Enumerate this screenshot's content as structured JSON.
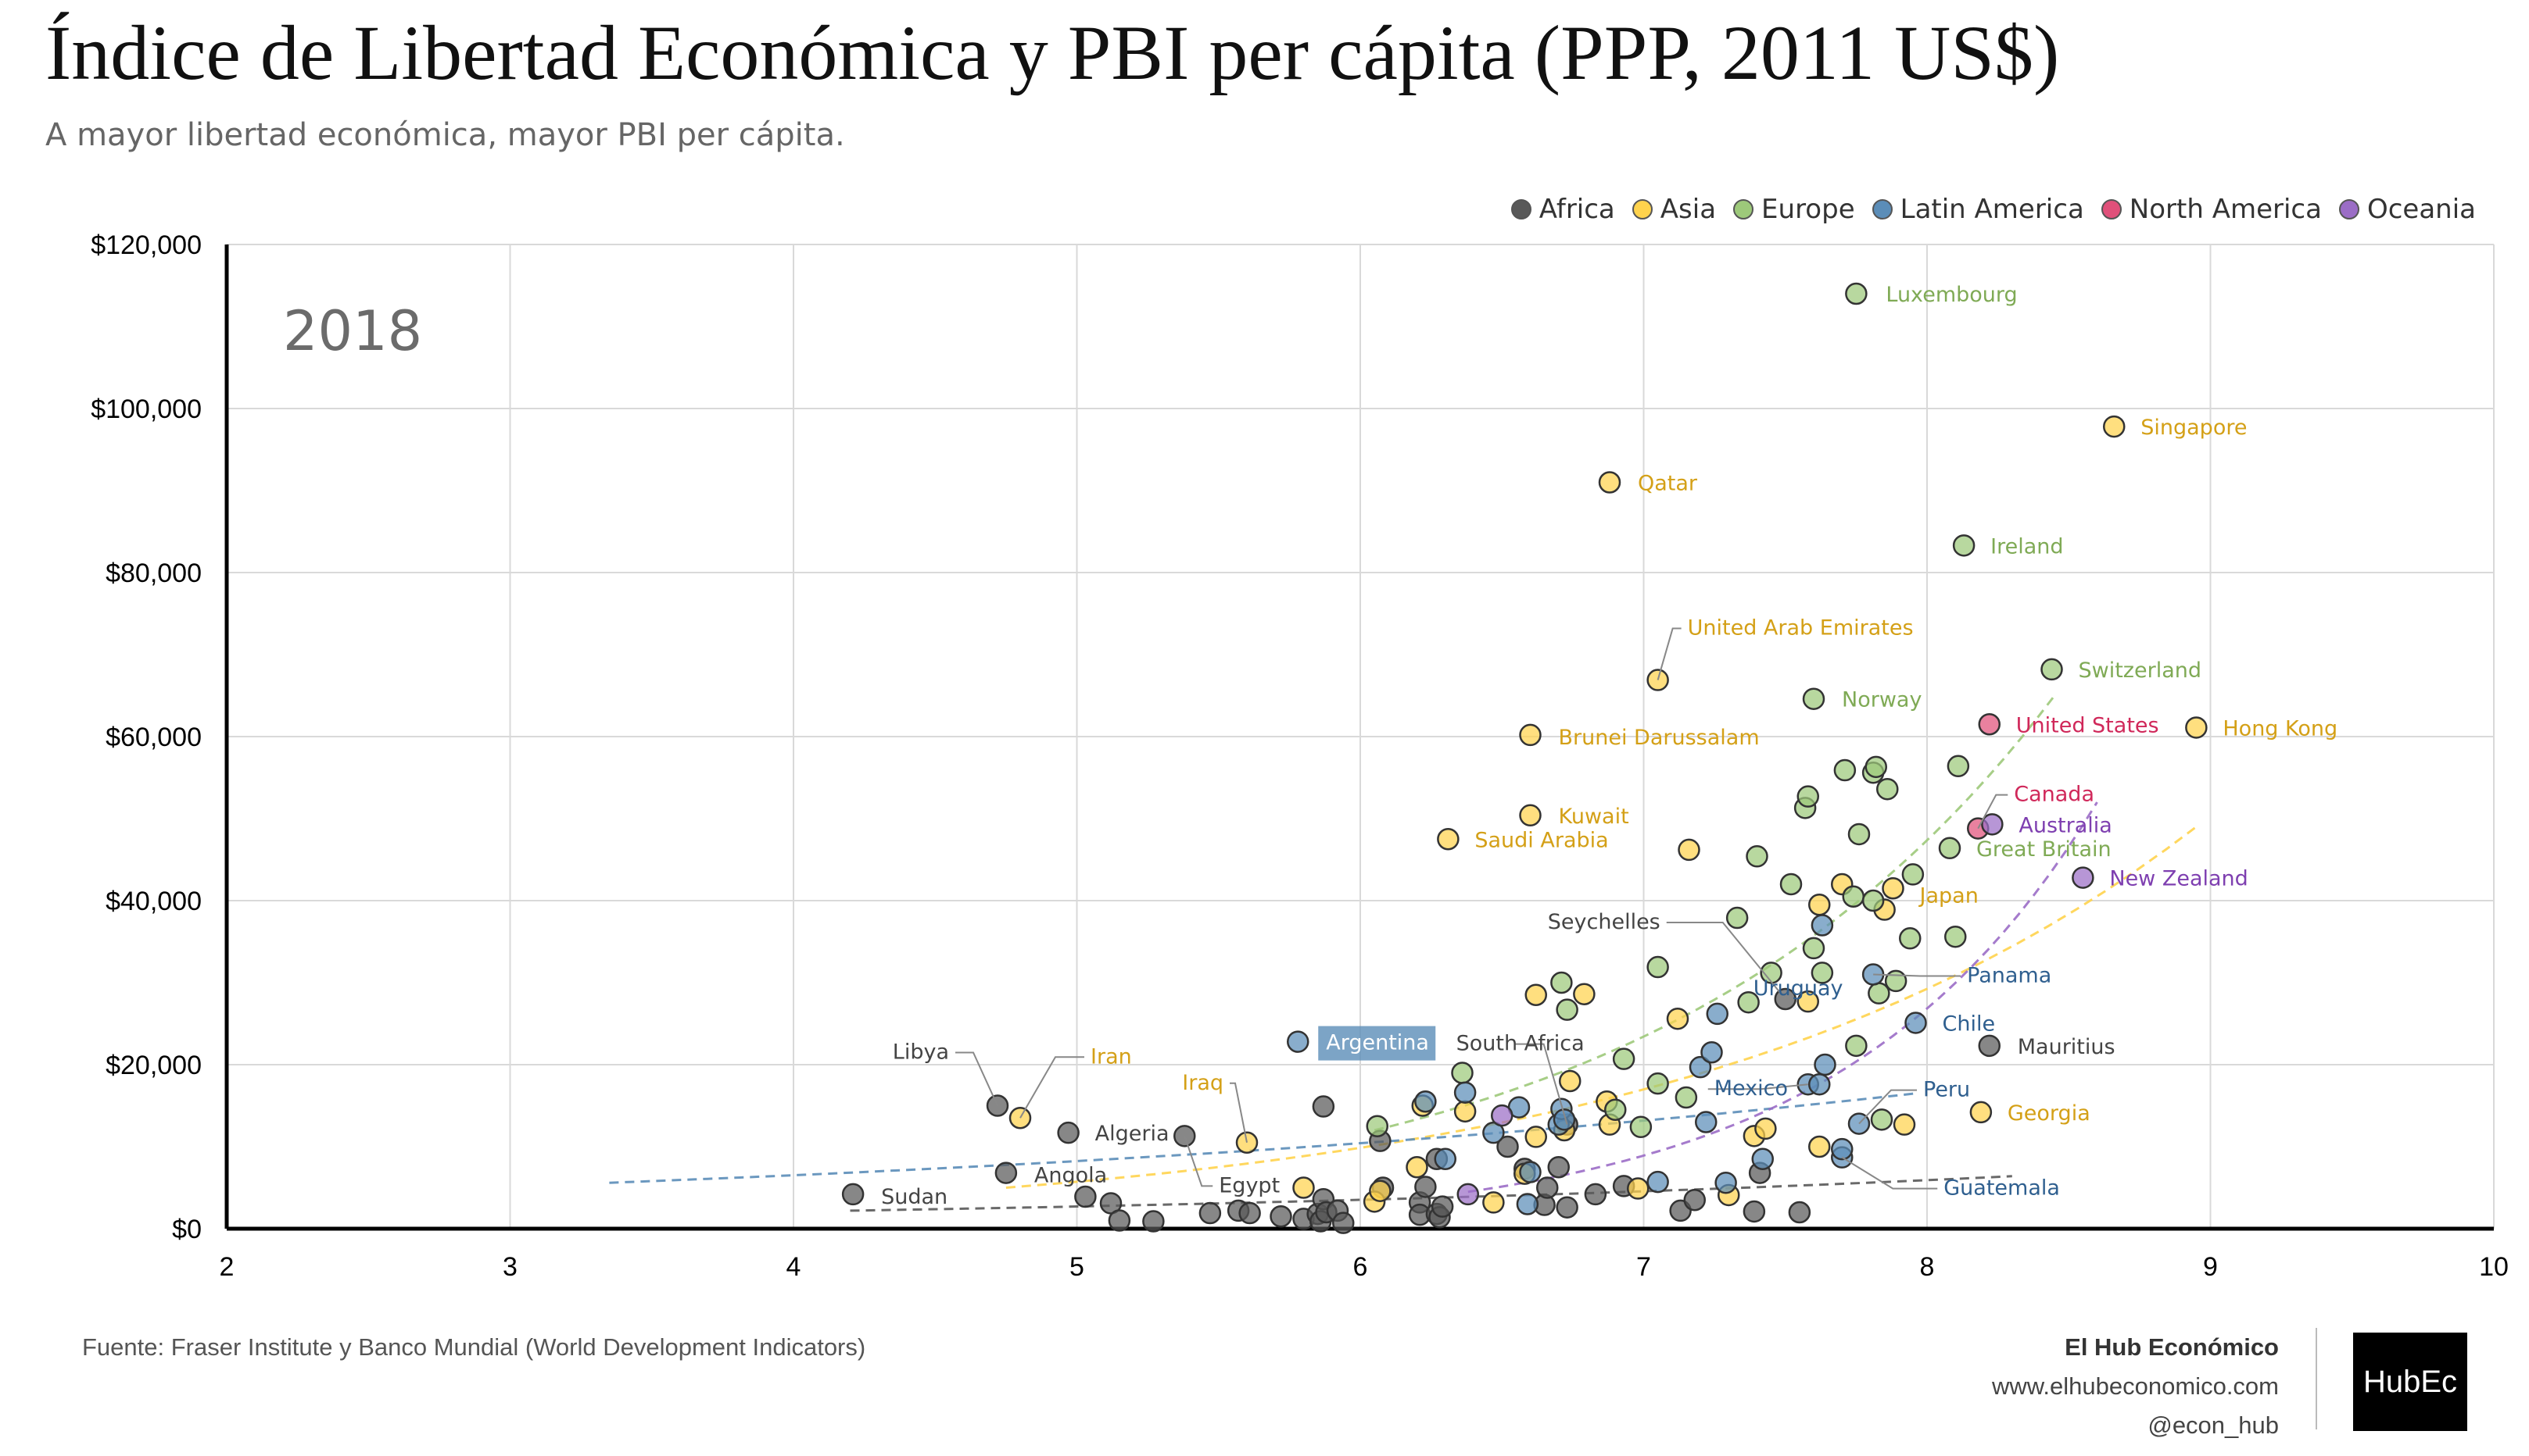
{
  "header": {
    "title": "Índice de Libertad Económica y PBI per cápita (PPP, 2011 US$)",
    "subtitle": "A mayor libertad económica, mayor PBI per cápita."
  },
  "footer": {
    "source": "Fuente: Fraser Institute y Banco Mundial (World Development Indicators)",
    "brand_name": "El Hub Económico",
    "website": "www.elhubeconomico.com",
    "handle": "@econ_hub",
    "logo_text": "HubEc"
  },
  "chart_data": {
    "type": "scatter",
    "year_label": "2018",
    "xlim": [
      2,
      10
    ],
    "ylim": [
      0,
      120000
    ],
    "x_ticks": [
      2,
      3,
      4,
      5,
      6,
      7,
      8,
      9,
      10
    ],
    "y_ticks": [
      0,
      20000,
      40000,
      60000,
      80000,
      100000,
      120000
    ],
    "y_tick_labels": [
      "$0",
      "$20,000",
      "$40,000",
      "$60,000",
      "$80,000",
      "$100,000",
      "$120,000"
    ],
    "grid": true,
    "legend_position": "top-right",
    "series": [
      {
        "name": "Africa",
        "color": "#595959",
        "points": [
          [
            4.21,
            4200
          ],
          [
            4.75,
            6800
          ],
          [
            4.72,
            15000
          ],
          [
            4.97,
            11700
          ],
          [
            5.03,
            3900
          ],
          [
            5.12,
            3100
          ],
          [
            5.15,
            1000
          ],
          [
            5.27,
            900
          ],
          [
            5.38,
            11300
          ],
          [
            5.47,
            1900
          ],
          [
            5.57,
            2200
          ],
          [
            5.61,
            1900
          ],
          [
            5.72,
            1500
          ],
          [
            5.8,
            1200
          ],
          [
            5.85,
            1800
          ],
          [
            5.86,
            900
          ],
          [
            5.87,
            3600
          ],
          [
            5.88,
            2000
          ],
          [
            5.92,
            2200
          ],
          [
            5.94,
            700
          ],
          [
            5.87,
            14900
          ],
          [
            6.07,
            10700
          ],
          [
            6.08,
            5000
          ],
          [
            6.21,
            3200
          ],
          [
            6.21,
            1700
          ],
          [
            6.23,
            5100
          ],
          [
            6.27,
            1800
          ],
          [
            6.28,
            1400
          ],
          [
            6.27,
            8500
          ],
          [
            6.29,
            2700
          ],
          [
            6.52,
            10000
          ],
          [
            6.58,
            7300
          ],
          [
            6.65,
            2900
          ],
          [
            6.66,
            5000
          ],
          [
            6.7,
            7500
          ],
          [
            6.73,
            12700
          ],
          [
            6.73,
            2600
          ],
          [
            6.83,
            4200
          ],
          [
            6.93,
            5200
          ],
          [
            7.13,
            2200
          ],
          [
            7.18,
            3500
          ],
          [
            7.39,
            2100
          ],
          [
            7.41,
            6800
          ],
          [
            7.5,
            28000
          ],
          [
            7.55,
            2000
          ],
          [
            8.22,
            22300
          ]
        ]
      },
      {
        "name": "Asia",
        "color": "#FFD34D",
        "points": [
          [
            4.8,
            13500
          ],
          [
            5.6,
            10500
          ],
          [
            5.8,
            5000
          ],
          [
            6.05,
            3300
          ],
          [
            6.07,
            4600
          ],
          [
            6.2,
            7500
          ],
          [
            6.22,
            15000
          ],
          [
            6.31,
            47500
          ],
          [
            6.37,
            14300
          ],
          [
            6.47,
            3200
          ],
          [
            6.58,
            6700
          ],
          [
            6.6,
            60200
          ],
          [
            6.6,
            50400
          ],
          [
            6.62,
            28500
          ],
          [
            6.62,
            11200
          ],
          [
            6.72,
            12000
          ],
          [
            6.74,
            18000
          ],
          [
            6.79,
            28600
          ],
          [
            6.87,
            15500
          ],
          [
            6.88,
            91000
          ],
          [
            6.88,
            12700
          ],
          [
            6.98,
            4900
          ],
          [
            7.05,
            66900
          ],
          [
            7.12,
            25600
          ],
          [
            7.16,
            46200
          ],
          [
            7.3,
            4100
          ],
          [
            7.39,
            11300
          ],
          [
            7.43,
            12200
          ],
          [
            7.58,
            27700
          ],
          [
            7.62,
            10000
          ],
          [
            7.62,
            39500
          ],
          [
            7.7,
            42000
          ],
          [
            7.85,
            38900
          ],
          [
            7.88,
            41500
          ],
          [
            7.92,
            12700
          ],
          [
            8.19,
            14200
          ],
          [
            8.66,
            97800
          ],
          [
            8.95,
            61100
          ]
        ]
      },
      {
        "name": "Europe",
        "color": "#9DC97A",
        "points": [
          [
            6.06,
            12500
          ],
          [
            6.36,
            19000
          ],
          [
            6.71,
            30000
          ],
          [
            6.73,
            26700
          ],
          [
            6.9,
            14500
          ],
          [
            6.93,
            20700
          ],
          [
            6.99,
            12400
          ],
          [
            7.05,
            31900
          ],
          [
            7.05,
            17700
          ],
          [
            7.15,
            16000
          ],
          [
            7.33,
            37900
          ],
          [
            7.37,
            27600
          ],
          [
            7.4,
            45400
          ],
          [
            7.45,
            31200
          ],
          [
            7.52,
            42000
          ],
          [
            7.57,
            51300
          ],
          [
            7.58,
            52700
          ],
          [
            7.6,
            34200
          ],
          [
            7.6,
            64600
          ],
          [
            7.63,
            31200
          ],
          [
            7.71,
            55900
          ],
          [
            7.74,
            40500
          ],
          [
            7.75,
            114000
          ],
          [
            7.75,
            22300
          ],
          [
            7.76,
            48100
          ],
          [
            7.81,
            40000
          ],
          [
            7.81,
            55600
          ],
          [
            7.82,
            56300
          ],
          [
            7.83,
            28700
          ],
          [
            7.84,
            13300
          ],
          [
            7.86,
            53600
          ],
          [
            7.89,
            30200
          ],
          [
            7.94,
            35400
          ],
          [
            7.95,
            43200
          ],
          [
            8.08,
            46400
          ],
          [
            8.1,
            35600
          ],
          [
            8.11,
            56400
          ],
          [
            8.13,
            83300
          ],
          [
            8.44,
            68200
          ]
        ]
      },
      {
        "name": "Latin America",
        "color": "#5B8DB8",
        "points": [
          [
            5.78,
            22800
          ],
          [
            6.23,
            15500
          ],
          [
            6.3,
            8500
          ],
          [
            6.37,
            16600
          ],
          [
            6.47,
            11700
          ],
          [
            6.56,
            14800
          ],
          [
            6.59,
            3000
          ],
          [
            6.6,
            6900
          ],
          [
            6.7,
            12700
          ],
          [
            6.71,
            14600
          ],
          [
            6.72,
            13300
          ],
          [
            7.2,
            19700
          ],
          [
            7.22,
            13000
          ],
          [
            7.24,
            21500
          ],
          [
            7.26,
            26200
          ],
          [
            7.29,
            5600
          ],
          [
            7.42,
            8500
          ],
          [
            7.58,
            17600
          ],
          [
            7.62,
            17600
          ],
          [
            7.63,
            37000
          ],
          [
            7.64,
            20000
          ],
          [
            7.7,
            8700
          ],
          [
            7.76,
            12800
          ],
          [
            7.81,
            31000
          ],
          [
            7.96,
            25100
          ],
          [
            7.05,
            5700
          ],
          [
            7.7,
            9700
          ]
        ]
      },
      {
        "name": "North America",
        "color": "#E0507A",
        "points": [
          [
            8.18,
            48800
          ],
          [
            8.22,
            61500
          ]
        ]
      },
      {
        "name": "Oceania",
        "color": "#9B6DC6",
        "points": [
          [
            6.38,
            4200
          ],
          [
            6.5,
            13800
          ],
          [
            8.23,
            49300
          ],
          [
            8.55,
            42800
          ]
        ]
      }
    ],
    "annotations": [
      {
        "label": "Luxembourg",
        "series": "Europe",
        "x": 7.75,
        "y": 114000
      },
      {
        "label": "Singapore",
        "series": "Asia",
        "x": 8.66,
        "y": 97800
      },
      {
        "label": "Qatar",
        "series": "Asia",
        "x": 6.88,
        "y": 91000
      },
      {
        "label": "Ireland",
        "series": "Europe",
        "x": 8.13,
        "y": 83300
      },
      {
        "label": "United Arab Emirates",
        "series": "Asia",
        "x": 7.05,
        "y": 66900
      },
      {
        "label": "Switzerland",
        "series": "Europe",
        "x": 8.44,
        "y": 68200
      },
      {
        "label": "Norway",
        "series": "Europe",
        "x": 7.6,
        "y": 64600
      },
      {
        "label": "Brunei Darussalam",
        "series": "Asia",
        "x": 6.6,
        "y": 60200
      },
      {
        "label": "United States",
        "series": "North America",
        "x": 8.22,
        "y": 61500
      },
      {
        "label": "Hong Kong",
        "series": "Asia",
        "x": 8.95,
        "y": 61100
      },
      {
        "label": "Canada",
        "series": "North America",
        "x": 8.18,
        "y": 48800
      },
      {
        "label": "Kuwait",
        "series": "Asia",
        "x": 6.6,
        "y": 50400
      },
      {
        "label": "Australia",
        "series": "Oceania",
        "x": 8.23,
        "y": 49300
      },
      {
        "label": "Saudi Arabia",
        "series": "Asia",
        "x": 6.31,
        "y": 47500
      },
      {
        "label": "Great Britain",
        "series": "Europe",
        "x": 8.08,
        "y": 46400
      },
      {
        "label": "New Zealand",
        "series": "Oceania",
        "x": 8.55,
        "y": 42800
      },
      {
        "label": "Japan",
        "series": "Asia",
        "x": 7.88,
        "y": 41500
      },
      {
        "label": "Seychelles",
        "series": "Africa",
        "x": 7.5,
        "y": 28000
      },
      {
        "label": "Panama",
        "series": "Latin America",
        "x": 7.81,
        "y": 31000
      },
      {
        "label": "Libya",
        "series": "Africa",
        "x": 4.72,
        "y": 15000
      },
      {
        "label": "Iran",
        "series": "Asia",
        "x": 4.8,
        "y": 13500
      },
      {
        "label": "Argentina",
        "series": "Latin America",
        "x": 5.78,
        "y": 22800
      },
      {
        "label": "South Africa",
        "series": "Africa",
        "x": 6.73,
        "y": 12700
      },
      {
        "label": "Uruguay",
        "series": "Latin America",
        "x": 7.26,
        "y": 26200
      },
      {
        "label": "Chile",
        "series": "Latin America",
        "x": 7.96,
        "y": 25100
      },
      {
        "label": "Mauritius",
        "series": "Africa",
        "x": 8.22,
        "y": 22300
      },
      {
        "label": "Mexico",
        "series": "Latin America",
        "x": 7.58,
        "y": 17600
      },
      {
        "label": "Peru",
        "series": "Latin America",
        "x": 7.76,
        "y": 12800
      },
      {
        "label": "Iraq",
        "series": "Asia",
        "x": 5.6,
        "y": 10500
      },
      {
        "label": "Algeria",
        "series": "Africa",
        "x": 4.97,
        "y": 11700
      },
      {
        "label": "Georgia",
        "series": "Asia",
        "x": 8.19,
        "y": 14200
      },
      {
        "label": "Egypt",
        "series": "Africa",
        "x": 5.38,
        "y": 11300
      },
      {
        "label": "Angola",
        "series": "Africa",
        "x": 4.75,
        "y": 6800
      },
      {
        "label": "Guatemala",
        "series": "Latin America",
        "x": 7.7,
        "y": 8700
      },
      {
        "label": "Sudan",
        "series": "Africa",
        "x": 4.21,
        "y": 4200
      }
    ],
    "trendlines": [
      {
        "series": "Africa",
        "x": [
          4.2,
          8.3
        ],
        "y": [
          2200,
          6400
        ]
      },
      {
        "series": "Asia",
        "x": [
          4.75,
          8.95
        ],
        "y": [
          5000,
          49000
        ]
      },
      {
        "series": "Europe",
        "x": [
          6.05,
          8.45
        ],
        "y": [
          12000,
          65000
        ]
      },
      {
        "series": "Latin America",
        "x": [
          3.35,
          7.96
        ],
        "y": [
          5600,
          16500
        ]
      },
      {
        "series": "Oceania",
        "x": [
          6.38,
          8.6
        ],
        "y": [
          4500,
          52000
        ]
      }
    ]
  }
}
